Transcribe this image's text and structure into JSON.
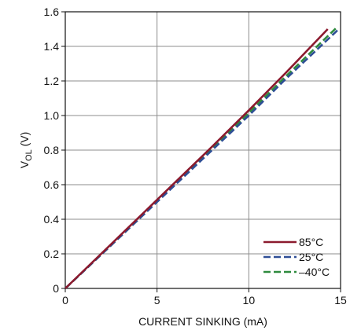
{
  "chart_data": {
    "type": "line",
    "xlabel": "CURRENT SINKING (mA)",
    "ylabel": {
      "main": "V",
      "sub": "OL",
      "unit": " (V)"
    },
    "xlim": [
      0,
      15
    ],
    "ylim": [
      0,
      1.6
    ],
    "xticks": [
      0,
      5,
      10,
      15
    ],
    "xtick_labels": [
      "0",
      "5",
      "10",
      "15"
    ],
    "yticks": [
      0,
      0.2,
      0.4,
      0.6,
      0.8,
      1.0,
      1.2,
      1.4,
      1.6
    ],
    "ytick_labels": [
      "0",
      "0.2",
      "0.4",
      "0.6",
      "0.8",
      "1.0",
      "1.2",
      "1.4",
      "1.6"
    ],
    "grid": true,
    "legend_position": "bottom-right",
    "series": [
      {
        "name": "85°C",
        "color": "#8b1a2e",
        "dash": "solid",
        "x": [
          0,
          2,
          4,
          6,
          8,
          10,
          12,
          14.3
        ],
        "y": [
          0,
          0.205,
          0.41,
          0.615,
          0.82,
          1.03,
          1.245,
          1.5
        ]
      },
      {
        "name": "25°C",
        "color": "#2e4e96",
        "dash": "dashed",
        "x": [
          0,
          2,
          4,
          6,
          8,
          10,
          12,
          14.9
        ],
        "y": [
          0,
          0.2,
          0.4,
          0.6,
          0.8,
          1.0,
          1.21,
          1.5
        ]
      },
      {
        "name": "–40°C",
        "color": "#2e8b3e",
        "dash": "dashed",
        "x": [
          0,
          2,
          4,
          6,
          8,
          10,
          12,
          14.8
        ],
        "y": [
          0,
          0.2,
          0.4,
          0.605,
          0.81,
          1.015,
          1.225,
          1.51
        ]
      }
    ]
  }
}
